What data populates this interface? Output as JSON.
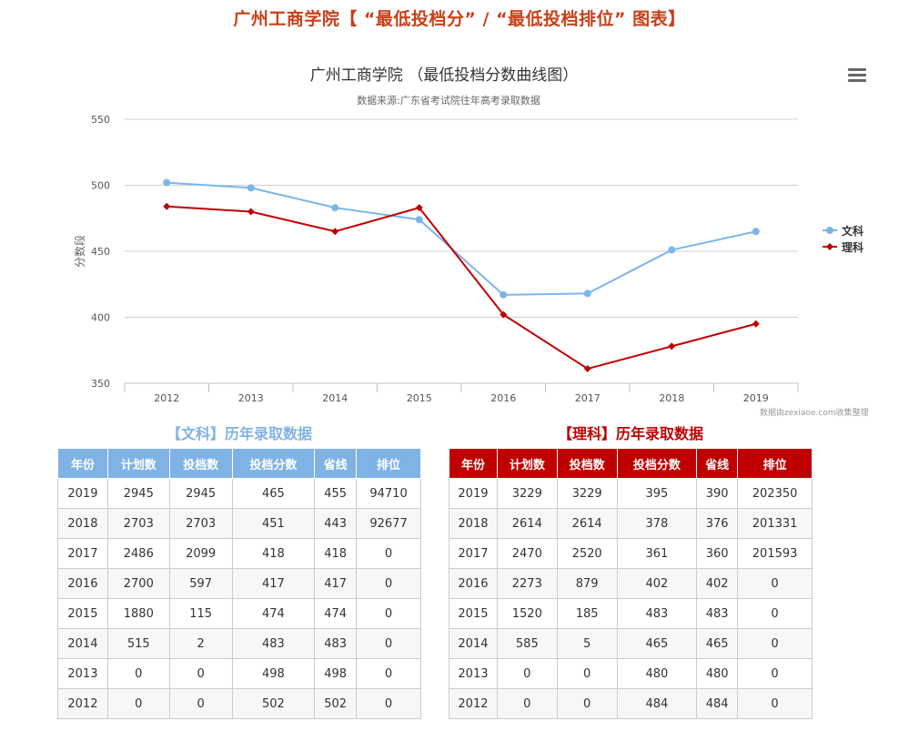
{
  "page": {
    "title": "广州工商学院【 “最低投档分” / “最低投档排位” 图表】"
  },
  "chart": {
    "title": "广州工商学院 （最低投档分数曲线图）",
    "subtitle": "数据来源:广东省考试院往年高考录取数据",
    "menu_icon": "hamburger-menu-icon",
    "credits": "数据由zexiaoe.com收集整理",
    "ylabel": "分数段",
    "yticks": [
      "550",
      "500",
      "450",
      "400",
      "350"
    ],
    "xticks": [
      "2012",
      "2013",
      "2014",
      "2015",
      "2016",
      "2017",
      "2018",
      "2019"
    ],
    "legend": [
      {
        "name": "文科",
        "color": "#7cb5ec",
        "marker": "circle"
      },
      {
        "name": "理科",
        "color": "#c00000",
        "marker": "diamond"
      }
    ]
  },
  "chart_data": {
    "type": "line",
    "title": "广州工商学院 （最低投档分数曲线图）",
    "subtitle": "数据来源:广东省考试院往年高考录取数据",
    "xlabel": "",
    "ylabel": "分数段",
    "ylim": [
      350,
      550
    ],
    "yticks": [
      350,
      400,
      450,
      500,
      550
    ],
    "grid": true,
    "legend_position": "right",
    "categories": [
      "2012",
      "2013",
      "2014",
      "2015",
      "2016",
      "2017",
      "2018",
      "2019"
    ],
    "series": [
      {
        "name": "文科",
        "color": "#7cb5ec",
        "values": [
          502,
          498,
          483,
          474,
          417,
          418,
          451,
          465
        ]
      },
      {
        "name": "理科",
        "color": "#c00000",
        "values": [
          484,
          480,
          465,
          483,
          402,
          361,
          378,
          395
        ]
      }
    ]
  },
  "tables": {
    "headers": [
      "年份",
      "计划数",
      "投档数",
      "投档分数",
      "省线",
      "排位"
    ],
    "wen": {
      "caption": "【文科】历年录取数据",
      "rows": [
        [
          "2019",
          "2945",
          "2945",
          "465",
          "455",
          "94710"
        ],
        [
          "2018",
          "2703",
          "2703",
          "451",
          "443",
          "92677"
        ],
        [
          "2017",
          "2486",
          "2099",
          "418",
          "418",
          "0"
        ],
        [
          "2016",
          "2700",
          "597",
          "417",
          "417",
          "0"
        ],
        [
          "2015",
          "1880",
          "115",
          "474",
          "474",
          "0"
        ],
        [
          "2014",
          "515",
          "2",
          "483",
          "483",
          "0"
        ],
        [
          "2013",
          "0",
          "0",
          "498",
          "498",
          "0"
        ],
        [
          "2012",
          "0",
          "0",
          "502",
          "502",
          "0"
        ]
      ]
    },
    "li": {
      "caption": "【理科】历年录取数据",
      "rows": [
        [
          "2019",
          "3229",
          "3229",
          "395",
          "390",
          "202350"
        ],
        [
          "2018",
          "2614",
          "2614",
          "378",
          "376",
          "201331"
        ],
        [
          "2017",
          "2470",
          "2520",
          "361",
          "360",
          "201593"
        ],
        [
          "2016",
          "2273",
          "879",
          "402",
          "402",
          "0"
        ],
        [
          "2015",
          "1520",
          "185",
          "483",
          "483",
          "0"
        ],
        [
          "2014",
          "585",
          "5",
          "465",
          "465",
          "0"
        ],
        [
          "2013",
          "0",
          "0",
          "480",
          "480",
          "0"
        ],
        [
          "2012",
          "0",
          "0",
          "484",
          "484",
          "0"
        ]
      ]
    }
  }
}
